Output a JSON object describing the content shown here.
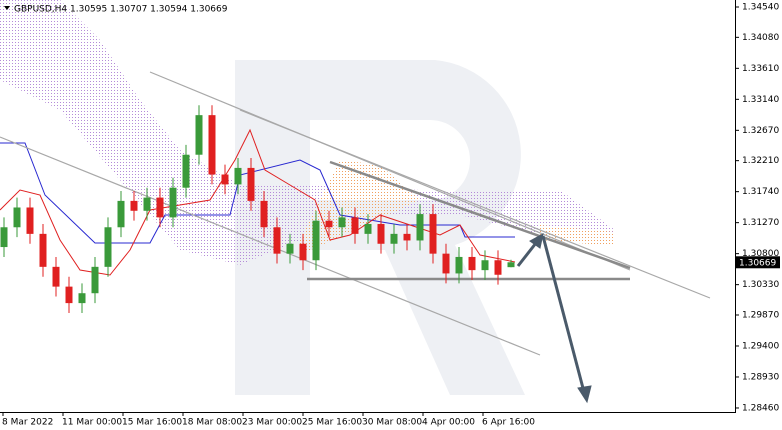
{
  "chart_data": {
    "type": "candlestick",
    "title": "GBPUSD,H4  1.30595 1.30707 1.30594 1.30669",
    "open": [
      1.309,
      1.312,
      1.315,
      1.311,
      1.306,
      1.303,
      1.3005,
      1.302,
      1.306,
      1.312,
      1.316,
      1.3145,
      1.3165,
      1.3135,
      1.318,
      1.323,
      1.329,
      1.32,
      1.3185,
      1.321,
      1.316,
      1.312,
      1.308,
      1.3095,
      1.307,
      1.313,
      1.312,
      1.3135,
      1.311,
      1.3125,
      1.3095,
      1.311,
      1.31,
      1.314,
      1.308,
      1.305,
      1.3075,
      1.3055,
      1.307,
      1.30595
    ],
    "high": [
      1.3135,
      1.3165,
      1.3165,
      1.3125,
      1.3075,
      1.3045,
      1.3035,
      1.3075,
      1.3135,
      1.3175,
      1.3175,
      1.318,
      1.318,
      1.3195,
      1.3245,
      1.3305,
      1.3305,
      1.3215,
      1.3225,
      1.3225,
      1.3175,
      1.3135,
      1.311,
      1.311,
      1.3145,
      1.3145,
      1.315,
      1.315,
      1.314,
      1.314,
      1.3125,
      1.3125,
      1.3155,
      1.3155,
      1.3095,
      1.309,
      1.309,
      1.3085,
      1.3085,
      1.30707
    ],
    "low": [
      1.3075,
      1.3105,
      1.3095,
      1.3045,
      1.3015,
      1.299,
      1.299,
      1.3005,
      1.3045,
      1.3105,
      1.313,
      1.313,
      1.312,
      1.312,
      1.3165,
      1.3215,
      1.3185,
      1.317,
      1.317,
      1.3145,
      1.3105,
      1.3065,
      1.3065,
      1.3055,
      1.3055,
      1.3105,
      1.3105,
      1.3095,
      1.3095,
      1.308,
      1.308,
      1.3085,
      1.3085,
      1.3065,
      1.3035,
      1.3035,
      1.304,
      1.304,
      1.3033,
      1.30594
    ],
    "close": [
      1.312,
      1.315,
      1.311,
      1.306,
      1.303,
      1.3005,
      1.302,
      1.306,
      1.312,
      1.316,
      1.3145,
      1.3165,
      1.3135,
      1.318,
      1.323,
      1.329,
      1.32,
      1.3185,
      1.321,
      1.316,
      1.312,
      1.308,
      1.3095,
      1.307,
      1.313,
      1.312,
      1.3135,
      1.311,
      1.3125,
      1.3095,
      1.311,
      1.31,
      1.314,
      1.308,
      1.305,
      1.3075,
      1.3055,
      1.307,
      1.3048,
      1.30669
    ],
    "up_color": "#3a9a3a",
    "down_color": "#e02020",
    "ylim": [
      1.28399,
      1.34646
    ],
    "yticks": [
      {
        "value": 1.3454,
        "label": "1.34540"
      },
      {
        "value": 1.3408,
        "label": "1.34080"
      },
      {
        "value": 1.3361,
        "label": "1.33610"
      },
      {
        "value": 1.3314,
        "label": "1.33140"
      },
      {
        "value": 1.3267,
        "label": "1.32670"
      },
      {
        "value": 1.3221,
        "label": "1.32210"
      },
      {
        "value": 1.3174,
        "label": "1.31740"
      },
      {
        "value": 1.3127,
        "label": "1.31270"
      },
      {
        "value": 1.308,
        "label": "1.30800"
      },
      {
        "value": 1.3033,
        "label": "1.30330"
      },
      {
        "value": 1.2987,
        "label": "1.29870"
      },
      {
        "value": 1.294,
        "label": "1.29400"
      },
      {
        "value": 1.2893,
        "label": "1.28930"
      },
      {
        "value": 1.2846,
        "label": "1.28460"
      }
    ],
    "x_labels": [
      "8 Mar 2022",
      "11 Mar 00:00",
      "15 Mar 16:00",
      "18 Mar 08:00",
      "23 Mar 00:00",
      "25 Mar 16:00",
      "30 Mar 08:00",
      "4 Apr 00:00",
      "6 Apr 16:00"
    ]
  }
}
